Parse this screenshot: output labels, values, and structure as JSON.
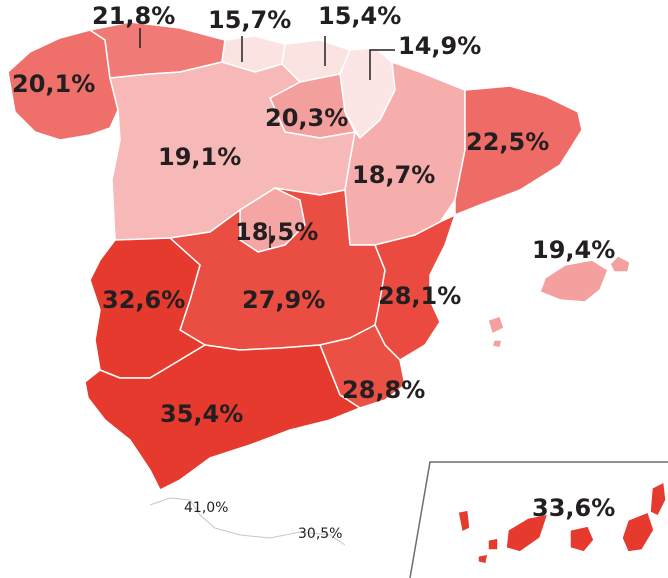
{
  "legend_scale": {
    "low": "#fbe3e2",
    "mid": "#f19c9c",
    "high": "#e63c2f"
  },
  "regions": {
    "galicia": {
      "label": "20,1%",
      "value": 20.1
    },
    "asturias": {
      "label": "21,8%",
      "value": 21.8
    },
    "cantabria": {
      "label": "15,7%",
      "value": 15.7
    },
    "pais_vasco": {
      "label": "15,4%",
      "value": 15.4
    },
    "navarra": {
      "label": "14,9%",
      "value": 14.9
    },
    "la_rioja": {
      "label": "20,3%",
      "value": 20.3
    },
    "castilla_leon": {
      "label": "19,1%",
      "value": 19.1
    },
    "aragon": {
      "label": "18,7%",
      "value": 18.7
    },
    "cataluna": {
      "label": "22,5%",
      "value": 22.5
    },
    "madrid": {
      "label": "18,5%",
      "value": 18.5
    },
    "extremadura": {
      "label": "32,6%",
      "value": 32.6
    },
    "castilla_la_mancha": {
      "label": "27,9%",
      "value": 27.9
    },
    "valencia": {
      "label": "28,1%",
      "value": 28.1
    },
    "baleares": {
      "label": "19,4%",
      "value": 19.4
    },
    "murcia": {
      "label": "28,8%",
      "value": 28.8
    },
    "andalucia": {
      "label": "35,4%",
      "value": 35.4
    },
    "ceuta": {
      "label": "41,0%",
      "value": 41.0
    },
    "melilla": {
      "label": "30,5%",
      "value": 30.5
    },
    "canarias": {
      "label": "33,6%",
      "value": 33.6
    }
  }
}
